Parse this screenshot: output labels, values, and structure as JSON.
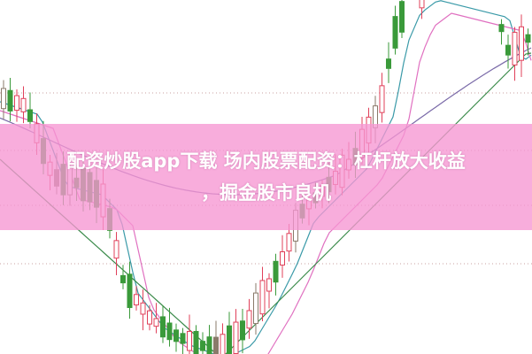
{
  "banner": {
    "title_line1": "配资炒股app下载 场内股票配资：杠杆放大收益",
    "title_line2": "，掘金股市良机"
  },
  "colors": {
    "up": "#e0405a",
    "down": "#3a9a3a",
    "flat": "#8a7a6a",
    "banner": "#f696d2",
    "ma_purple": "#7a6aa8",
    "ma_pink": "#e070c0",
    "ma_green": "#3a8a4a",
    "ma_teal": "#3a9aa8"
  }
}
